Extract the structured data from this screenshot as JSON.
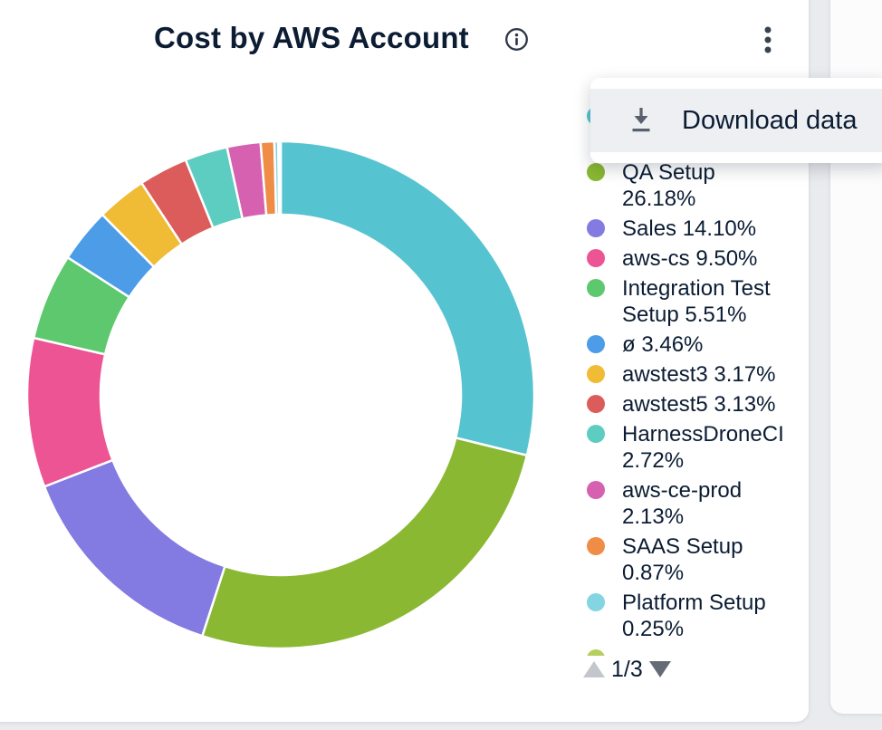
{
  "card": {
    "title": "Cost by AWS Account"
  },
  "header": {
    "info_icon": "info-icon",
    "overflow_icon": "kebab-menu-icon"
  },
  "menu": {
    "open": true,
    "items": [
      {
        "icon": "download-icon",
        "label": "Download data"
      }
    ]
  },
  "chart_data": {
    "type": "pie",
    "subtype": "donut",
    "title": "Cost by AWS Account",
    "legend_position": "right",
    "inner_radius_ratio": 0.71,
    "start_angle_deg": 0,
    "direction": "clockwise",
    "pagination": {
      "current": 1,
      "total": 3,
      "display": "1/3"
    },
    "slices": [
      {
        "label": "",
        "label_obscured_by_menu": true,
        "value": 28.83,
        "value_estimated": true,
        "pct_text": "",
        "color": "#56c3d1",
        "legend": true,
        "legend_lines": [
          "",
          ""
        ]
      },
      {
        "label": "QA Setup",
        "value": 26.18,
        "pct_text": "26.18%",
        "color": "#8ab832",
        "legend": true,
        "legend_lines": [
          "QA Setup",
          "26.18%"
        ]
      },
      {
        "label": "Sales",
        "value": 14.1,
        "pct_text": "14.10%",
        "color": "#837ae2",
        "legend": true,
        "legend_lines": [
          "Sales 14.10%"
        ]
      },
      {
        "label": "aws-cs",
        "value": 9.5,
        "pct_text": "9.50%",
        "color": "#ed5493",
        "legend": true,
        "legend_lines": [
          "aws-cs 9.50%"
        ]
      },
      {
        "label": "Integration Test Setup",
        "value": 5.51,
        "pct_text": "5.51%",
        "color": "#5dc86e",
        "legend": true,
        "legend_lines": [
          "Integration Test",
          "Setup 5.51%"
        ]
      },
      {
        "label": "ø",
        "value": 3.46,
        "pct_text": "3.46%",
        "color": "#4c9ce8",
        "legend": true,
        "legend_lines": [
          "ø 3.46%"
        ]
      },
      {
        "label": "awstest3",
        "value": 3.17,
        "pct_text": "3.17%",
        "color": "#f0bc35",
        "legend": true,
        "legend_lines": [
          "awstest3 3.17%"
        ]
      },
      {
        "label": "awstest5",
        "value": 3.13,
        "pct_text": "3.13%",
        "color": "#dc5c5c",
        "legend": true,
        "legend_lines": [
          "awstest5 3.13%"
        ]
      },
      {
        "label": "HarnessDroneCI",
        "value": 2.72,
        "pct_text": "2.72%",
        "color": "#5ecdc1",
        "legend": true,
        "legend_lines": [
          "HarnessDroneCI",
          "2.72%"
        ]
      },
      {
        "label": "aws-ce-prod",
        "value": 2.13,
        "pct_text": "2.13%",
        "color": "#d661b1",
        "legend": true,
        "legend_lines": [
          "aws-ce-prod",
          "2.13%"
        ]
      },
      {
        "label": "SAAS Setup",
        "value": 0.87,
        "pct_text": "0.87%",
        "color": "#ef8c46",
        "legend": true,
        "legend_lines": [
          "SAAS Setup",
          "0.87%"
        ]
      },
      {
        "label": "Platform Setup",
        "value": 0.25,
        "pct_text": "0.25%",
        "color": "#83d5e2",
        "legend": true,
        "legend_lines": [
          "Platform Setup",
          "0.25%"
        ]
      },
      {
        "label": "",
        "label_clipped": true,
        "value": 0.1,
        "value_estimated": true,
        "pct_text": "",
        "color": "#b7cf5f",
        "legend": true,
        "legend_lines": [
          ""
        ]
      },
      {
        "label": "",
        "value": 0.05,
        "value_estimated": true,
        "pct_text": "",
        "color": "#7fd0d8",
        "legend": false,
        "legend_lines": []
      }
    ]
  },
  "colors": {
    "text": "#0b1c33",
    "icon_slate": "#57606c",
    "icon_dark": "#39424f",
    "page_bg": "#e9ebee",
    "card_bg": "#ffffff",
    "menu_bg": "#ffffff",
    "menu_row_bg": "#edeff2",
    "pagination_prev": "#c3c7cc",
    "pagination_next": "#646b74",
    "slice_gap_stroke": "#ffffff"
  }
}
